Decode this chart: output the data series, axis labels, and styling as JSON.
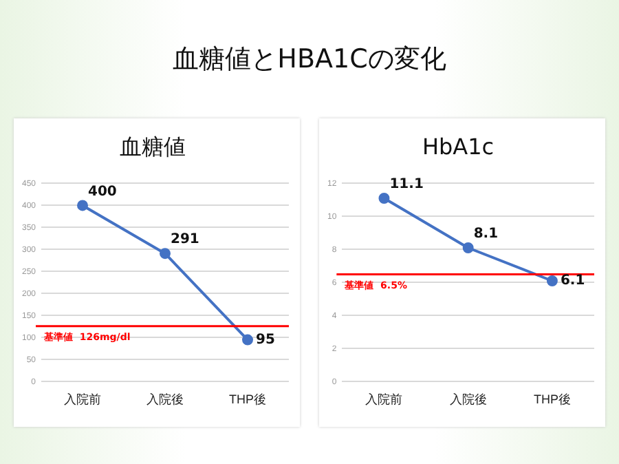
{
  "chart_data": [
    {
      "type": "other",
      "title": "血糖値とHBA1Cの変化"
    },
    {
      "type": "line",
      "title": "血糖値",
      "categories": [
        "入院前",
        "入院後",
        "THP後"
      ],
      "series": [
        {
          "color": "#4472c4",
          "values": [
            400,
            291,
            95
          ]
        }
      ],
      "ylim": [
        0,
        450
      ],
      "yticks": [
        0,
        50,
        100,
        150,
        200,
        250,
        300,
        350,
        400,
        450
      ],
      "grid": "y",
      "legend": false,
      "marker": "circle",
      "line_style": "solid",
      "data_labels": true,
      "ref_lines": [
        {
          "axis": "y",
          "value": 126,
          "label": "基準値  126mg/dl",
          "color": "#ff0000"
        }
      ]
    },
    {
      "type": "line",
      "title": "HbA1c",
      "categories": [
        "入院前",
        "入院後",
        "THP後"
      ],
      "series": [
        {
          "color": "#4472c4",
          "values": [
            11.1,
            8.1,
            6.1
          ]
        }
      ],
      "ylim": [
        0,
        12
      ],
      "yticks": [
        0,
        2,
        4,
        6,
        8,
        10,
        12
      ],
      "grid": "y",
      "legend": false,
      "marker": "circle",
      "line_style": "solid",
      "data_labels": true,
      "ref_lines": [
        {
          "axis": "y",
          "value": 6.5,
          "label": "基準値  6.5%",
          "color": "#ff0000"
        }
      ]
    }
  ]
}
